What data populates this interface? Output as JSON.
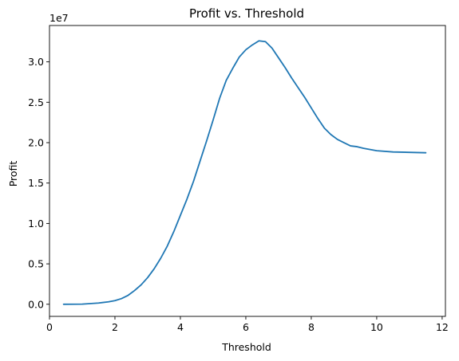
{
  "chart_data": {
    "type": "line",
    "title": "Profit vs. Threshold",
    "xlabel": "Threshold",
    "ylabel": "Profit",
    "y_offset_label": "1e7",
    "y_scale": 10000000,
    "xlim": [
      0.0,
      12.1
    ],
    "ylim": [
      -1500000,
      34500000
    ],
    "xticks": [
      0,
      2,
      4,
      6,
      8,
      10,
      12
    ],
    "xtick_labels": [
      "0",
      "2",
      "4",
      "6",
      "8",
      "10",
      "12"
    ],
    "yticks": [
      0,
      5000000,
      10000000,
      15000000,
      20000000,
      25000000,
      30000000
    ],
    "ytick_labels": [
      "0.0",
      "0.5",
      "1.0",
      "1.5",
      "2.0",
      "2.5",
      "3.0"
    ],
    "grid": false,
    "line_color": "#1f77b4",
    "series": [
      {
        "x": [
          0.43,
          1.0,
          1.5,
          1.8,
          2.0,
          2.2,
          2.4,
          2.6,
          2.8,
          3.0,
          3.2,
          3.4,
          3.6,
          3.8,
          4.0,
          4.2,
          4.4,
          4.6,
          4.8,
          5.0,
          5.2,
          5.4,
          5.6,
          5.8,
          6.0,
          6.2,
          6.4,
          6.6,
          6.8,
          7.0,
          7.2,
          7.4,
          7.6,
          7.8,
          8.0,
          8.2,
          8.4,
          8.6,
          8.8,
          9.0,
          9.2,
          9.4,
          9.6,
          9.8,
          10.0,
          10.5,
          11.0,
          11.5
        ],
        "y": [
          0,
          20000,
          150000,
          300000,
          450000,
          700000,
          1100000,
          1700000,
          2400000,
          3300000,
          4400000,
          5700000,
          7200000,
          9000000,
          11000000,
          13000000,
          15200000,
          17700000,
          20200000,
          22800000,
          25500000,
          27700000,
          29200000,
          30600000,
          31500000,
          32100000,
          32600000,
          32500000,
          31700000,
          30500000,
          29300000,
          28000000,
          26800000,
          25600000,
          24300000,
          23000000,
          21800000,
          21000000,
          20400000,
          20000000,
          19600000,
          19500000,
          19300000,
          19150000,
          19000000,
          18850000,
          18800000,
          18750000
        ]
      }
    ]
  }
}
